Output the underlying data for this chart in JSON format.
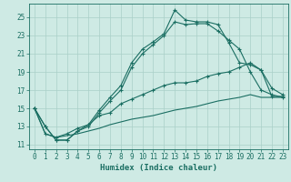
{
  "xlabel": "Humidex (Indice chaleur)",
  "xlim": [
    -0.5,
    23.5
  ],
  "ylim": [
    10.5,
    26.5
  ],
  "xticks": [
    0,
    1,
    2,
    3,
    4,
    5,
    6,
    7,
    8,
    9,
    10,
    11,
    12,
    13,
    14,
    15,
    16,
    17,
    18,
    19,
    20,
    21,
    22,
    23
  ],
  "yticks": [
    11,
    13,
    15,
    17,
    19,
    21,
    23,
    25
  ],
  "bg_color": "#ceeae4",
  "line_color": "#1a6e62",
  "grid_color": "#aacfc8",
  "line1_x": [
    0,
    1,
    2,
    3,
    4,
    5,
    6,
    7,
    8,
    9,
    10,
    11,
    12,
    13,
    14,
    15,
    16,
    17,
    18,
    19,
    20,
    21,
    22,
    23
  ],
  "line1_y": [
    15.0,
    13.0,
    11.5,
    11.5,
    12.5,
    13.2,
    14.8,
    16.2,
    17.5,
    20.0,
    21.5,
    22.3,
    23.2,
    25.8,
    24.7,
    24.5,
    24.5,
    24.2,
    22.2,
    20.0,
    19.8,
    19.2,
    17.2,
    16.5
  ],
  "line2_x": [
    0,
    1,
    2,
    3,
    4,
    5,
    6,
    7,
    8,
    9,
    10,
    11,
    12,
    13,
    14,
    15,
    16,
    17,
    18,
    19,
    20,
    21,
    22,
    23
  ],
  "line2_y": [
    15.0,
    13.0,
    11.5,
    11.5,
    12.5,
    13.0,
    14.5,
    15.8,
    17.0,
    19.5,
    21.0,
    22.0,
    23.0,
    24.5,
    24.2,
    24.3,
    24.3,
    23.5,
    22.5,
    21.5,
    19.0,
    17.0,
    16.5,
    16.2
  ],
  "line3_x": [
    0,
    1,
    2,
    3,
    4,
    5,
    6,
    7,
    8,
    9,
    10,
    11,
    12,
    13,
    14,
    15,
    16,
    17,
    18,
    19,
    20,
    21,
    22,
    23
  ],
  "line3_y": [
    15.0,
    12.2,
    11.8,
    12.2,
    12.8,
    13.2,
    14.2,
    14.5,
    15.5,
    16.0,
    16.5,
    17.0,
    17.5,
    17.8,
    17.8,
    18.0,
    18.5,
    18.8,
    19.0,
    19.5,
    20.0,
    19.2,
    16.3,
    16.3
  ],
  "line4_x": [
    0,
    1,
    2,
    3,
    4,
    5,
    6,
    7,
    8,
    9,
    10,
    11,
    12,
    13,
    14,
    15,
    16,
    17,
    18,
    19,
    20,
    21,
    22,
    23
  ],
  "line4_y": [
    15.0,
    12.2,
    11.8,
    12.0,
    12.2,
    12.5,
    12.8,
    13.2,
    13.5,
    13.8,
    14.0,
    14.2,
    14.5,
    14.8,
    15.0,
    15.2,
    15.5,
    15.8,
    16.0,
    16.2,
    16.5,
    16.2,
    16.2,
    16.2
  ]
}
